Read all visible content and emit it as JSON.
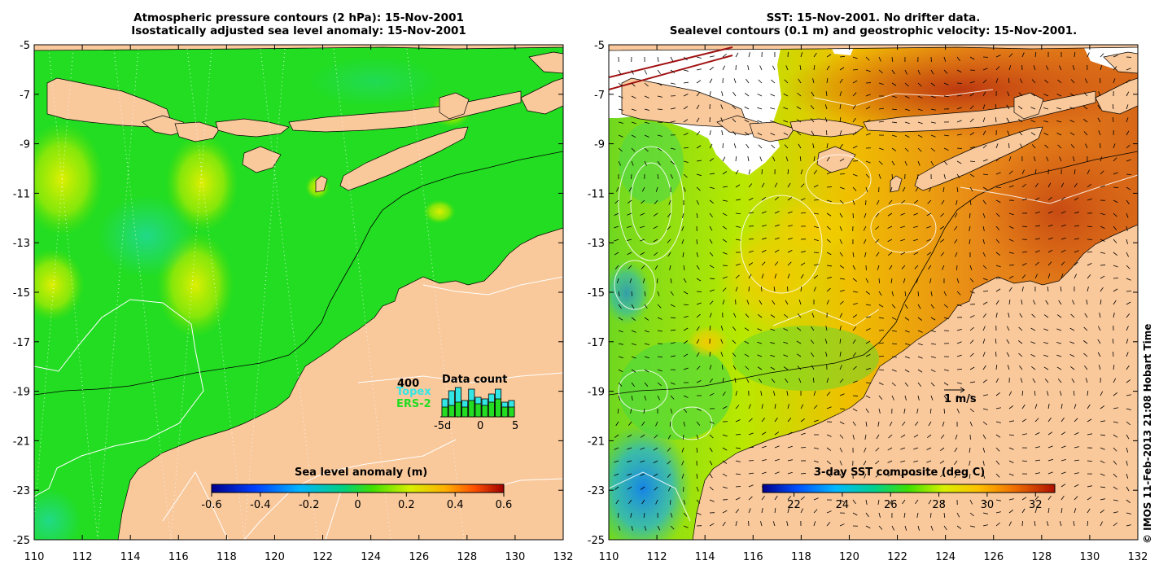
{
  "left_panel": {
    "title_line1": "Atmospheric pressure contours (2 hPa): 15-Nov-2001",
    "title_line2": "Isostatically adjusted sea level anomaly: 15-Nov-2001",
    "colorbar": {
      "title": "Sea level anomaly (m)",
      "ticks": [
        "-0.6",
        "-0.4",
        "-0.2",
        "0",
        "0.2",
        "0.4",
        "0.6"
      ],
      "range": [
        -0.6,
        0.6
      ]
    },
    "data_count": {
      "title": "Data count",
      "max_label": "400",
      "series1": "Topex",
      "series2": "ERS-2",
      "series1_color": "#33e6e6",
      "series2_color": "#22dd22",
      "x_labels": [
        "-5d",
        "0",
        "5"
      ],
      "topex_counts": [
        0.55,
        0.8,
        0.9,
        0.5,
        0.85,
        0.6,
        0.55,
        0.7,
        0.85,
        0.45,
        0.5
      ],
      "ers_counts": [
        0.3,
        0.35,
        0.45,
        0.3,
        0.5,
        0.4,
        0.35,
        0.45,
        0.55,
        0.3,
        0.3
      ]
    }
  },
  "right_panel": {
    "title_line1": "SST: 15-Nov-2001. No drifter data.",
    "title_line2": "Sealevel contours (0.1 m) and geostrophic velocity: 15-Nov-2001.",
    "velocity_label": "1 m/s",
    "colorbar": {
      "title": "3-day SST composite (deg C)",
      "ticks": [
        "22",
        "24",
        "26",
        "28",
        "30",
        "32"
      ],
      "range": [
        20.7,
        32.8
      ]
    }
  },
  "axes": {
    "x_ticks": [
      "110",
      "112",
      "114",
      "116",
      "118",
      "120",
      "122",
      "124",
      "126",
      "128",
      "130",
      "132"
    ],
    "y_ticks": [
      "-5",
      "-7",
      "-9",
      "-11",
      "-13",
      "-15",
      "-17",
      "-19",
      "-21",
      "-23",
      "-25"
    ],
    "lon_range": [
      110,
      132
    ],
    "lat_range": [
      -25,
      -5
    ]
  },
  "copyright": "© IMOS 11-Feb-2013 21:08 Hobart Time",
  "colors": {
    "land": "#f9c89b",
    "sla_ocean": "#22dd22",
    "sst_ocean": "#e07a1a"
  }
}
